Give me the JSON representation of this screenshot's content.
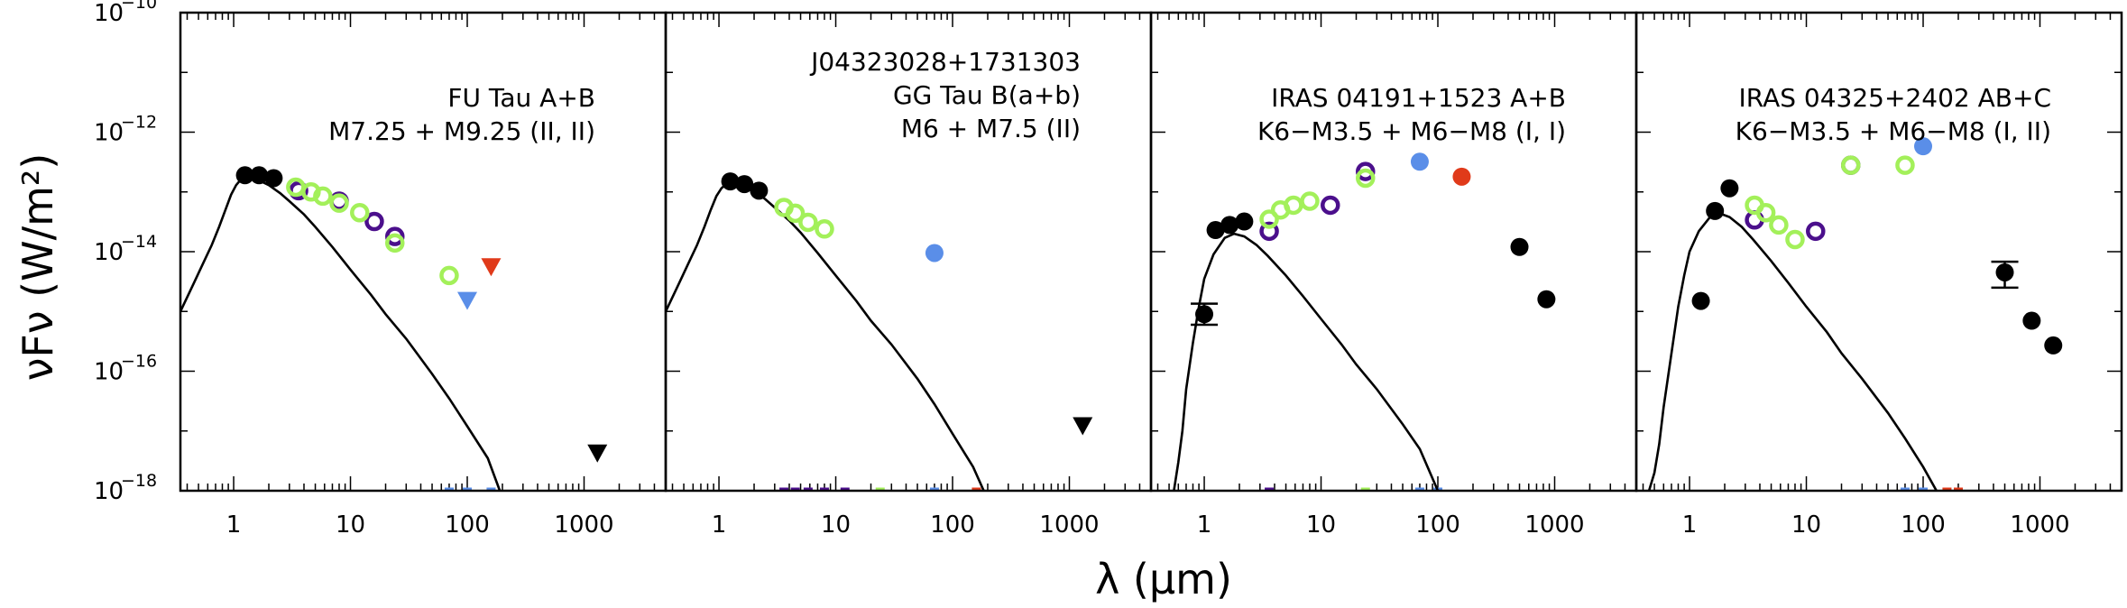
{
  "chart_data": {
    "type": "scatter",
    "xlabel": "λ (μm)",
    "ylabel": "νFν (W/m²)",
    "x_scale": "log",
    "y_scale": "log",
    "xlim": [
      0.35,
      5000
    ],
    "ylim": [
      1e-18,
      1e-10
    ],
    "x_ticks": [
      1,
      10,
      100,
      1000
    ],
    "x_tick_labels": [
      "1",
      "10",
      "100",
      "1000"
    ],
    "y_ticks": [
      1e-18,
      1e-16,
      1e-14,
      1e-12,
      1e-10
    ],
    "y_tick_labels": [
      {
        "base": "10",
        "exp": "−18"
      },
      {
        "base": "10",
        "exp": "−16"
      },
      {
        "base": "10",
        "exp": "−14"
      },
      {
        "base": "10",
        "exp": "−12"
      },
      {
        "base": "10",
        "exp": "−10"
      }
    ],
    "colors": {
      "black": "#000000",
      "purple": "#4b0f8c",
      "green": "#a3f05a",
      "blue": "#5a8ee8",
      "red": "#e03a1a"
    },
    "panels": [
      {
        "title_lines": [
          "FU Tau A+B",
          "M7.25 + M9.25 (II, II)"
        ],
        "series": [
          {
            "name": "black-filled",
            "marker": "filled-circle",
            "color": "black",
            "points": [
              [
                1.25,
                1.9e-13
              ],
              [
                1.65,
                1.9e-13
              ],
              [
                2.2,
                1.7e-13
              ]
            ]
          },
          {
            "name": "purple-open",
            "marker": "open-circle",
            "color": "purple",
            "points": [
              [
                3.6,
                1.05e-13
              ],
              [
                8.0,
                7e-14
              ],
              [
                16,
                3.2e-14
              ],
              [
                24,
                1.8e-14
              ]
            ]
          },
          {
            "name": "green-open",
            "marker": "open-circle",
            "color": "green",
            "points": [
              [
                3.4,
                1.2e-13
              ],
              [
                4.6,
                1e-13
              ],
              [
                5.8,
                8.5e-14
              ],
              [
                8.0,
                6.5e-14
              ],
              [
                12,
                4.5e-14
              ],
              [
                24,
                1.4e-14
              ],
              [
                70,
                4e-15
              ]
            ]
          },
          {
            "name": "blue-limit",
            "marker": "triangle-down",
            "color": "blue",
            "points": [
              [
                100,
                1.5e-15
              ]
            ]
          },
          {
            "name": "red-limit",
            "marker": "triangle-down",
            "color": "red",
            "points": [
              [
                160,
                5.5e-15
              ]
            ]
          },
          {
            "name": "black-limit",
            "marker": "triangle-down",
            "color": "black",
            "points": [
              [
                1300,
                4.2e-18
              ]
            ]
          }
        ],
        "model_curve": [
          [
            0.35,
            1e-15
          ],
          [
            0.45,
            2.8e-15
          ],
          [
            0.55,
            6.5e-15
          ],
          [
            0.65,
            1.3e-14
          ],
          [
            0.75,
            2.6e-14
          ],
          [
            0.85,
            5e-14
          ],
          [
            0.95,
            9e-14
          ],
          [
            1.05,
            1.3e-13
          ],
          [
            1.15,
            1.6e-13
          ],
          [
            1.25,
            1.8e-13
          ],
          [
            1.4,
            1.75e-13
          ],
          [
            1.6,
            1.6e-13
          ],
          [
            2.0,
            1.3e-13
          ],
          [
            2.5,
            9.5e-14
          ],
          [
            3.0,
            7e-14
          ],
          [
            4.0,
            4.2e-14
          ],
          [
            5.0,
            2.6e-14
          ],
          [
            7.0,
            1.2e-14
          ],
          [
            10,
            5e-15
          ],
          [
            15,
            1.9e-15
          ],
          [
            20,
            9e-16
          ],
          [
            30,
            3.5e-16
          ],
          [
            50,
            9e-17
          ],
          [
            70,
            3.5e-17
          ],
          [
            100,
            1.2e-17
          ],
          [
            150,
            3.5e-18
          ],
          [
            190,
            1e-18
          ]
        ],
        "axis_ticks": [
          {
            "x": 70,
            "color": "blue"
          },
          {
            "x": 100,
            "color": "blue"
          },
          {
            "x": 160,
            "color": "blue"
          }
        ]
      },
      {
        "title_lines": [
          "J04323028+1731303",
          "GG Tau B(a+b)",
          "M6 + M7.5 (II)"
        ],
        "series": [
          {
            "name": "black-filled",
            "marker": "filled-circle",
            "color": "black",
            "points": [
              [
                1.25,
                1.5e-13
              ],
              [
                1.65,
                1.35e-13
              ],
              [
                2.2,
                1.05e-13
              ]
            ]
          },
          {
            "name": "green-open",
            "marker": "open-circle",
            "color": "green",
            "points": [
              [
                3.6,
                5.5e-14
              ],
              [
                4.5,
                4.4e-14
              ],
              [
                5.8,
                3.1e-14
              ],
              [
                8.0,
                2.4e-14
              ]
            ]
          },
          {
            "name": "blue-filled",
            "marker": "filled-circle",
            "color": "blue",
            "points": [
              [
                70,
                9.5e-15
              ]
            ]
          },
          {
            "name": "black-limit",
            "marker": "triangle-down",
            "color": "black",
            "points": [
              [
                1300,
                1.2e-17
              ]
            ]
          }
        ],
        "model_curve": [
          [
            0.35,
            1e-15
          ],
          [
            0.45,
            2.8e-15
          ],
          [
            0.55,
            6.5e-15
          ],
          [
            0.65,
            1.3e-14
          ],
          [
            0.75,
            2.6e-14
          ],
          [
            0.85,
            5e-14
          ],
          [
            0.95,
            8.5e-14
          ],
          [
            1.05,
            1.15e-13
          ],
          [
            1.15,
            1.35e-13
          ],
          [
            1.25,
            1.45e-13
          ],
          [
            1.4,
            1.4e-13
          ],
          [
            1.6,
            1.3e-13
          ],
          [
            2.0,
            1.05e-13
          ],
          [
            2.5,
            7.5e-14
          ],
          [
            3.0,
            5.5e-14
          ],
          [
            4.0,
            3.3e-14
          ],
          [
            5.0,
            2.1e-14
          ],
          [
            7.0,
            9.5e-15
          ],
          [
            10,
            4e-15
          ],
          [
            15,
            1.5e-15
          ],
          [
            20,
            7e-16
          ],
          [
            30,
            2.8e-16
          ],
          [
            50,
            7.5e-17
          ],
          [
            70,
            2.8e-17
          ],
          [
            100,
            9e-18
          ],
          [
            150,
            2.5e-18
          ],
          [
            185,
            1e-18
          ]
        ],
        "axis_ticks": [
          {
            "x": 3.6,
            "color": "purple"
          },
          {
            "x": 4.5,
            "color": "purple"
          },
          {
            "x": 5.8,
            "color": "purple"
          },
          {
            "x": 8,
            "color": "purple"
          },
          {
            "x": 12,
            "color": "purple"
          },
          {
            "x": 24,
            "color": "green"
          },
          {
            "x": 70,
            "color": "blue"
          },
          {
            "x": 160,
            "color": "red"
          }
        ]
      },
      {
        "title_lines": [
          "IRAS 04191+1523 A+B",
          "K6−M3.5 + M6−M8 (I, I)"
        ],
        "series": [
          {
            "name": "black-filled",
            "marker": "filled-circle",
            "color": "black",
            "points": [
              [
                1.25,
                2.3e-14
              ],
              [
                1.65,
                2.8e-14
              ],
              [
                2.2,
                3.2e-14
              ],
              [
                500,
                1.2e-14
              ],
              [
                850,
                1.6e-15
              ]
            ]
          },
          {
            "name": "black-errorbar",
            "marker": "errorbar-circle",
            "color": "black",
            "points": [
              [
                1.0,
                9e-16,
                6e-16,
                1.35e-15
              ]
            ]
          },
          {
            "name": "purple-open",
            "marker": "open-circle",
            "color": "purple",
            "points": [
              [
                3.6,
                2.2e-14
              ],
              [
                12,
                6e-14
              ],
              [
                24,
                2.2e-13
              ]
            ]
          },
          {
            "name": "green-open",
            "marker": "open-circle",
            "color": "green",
            "points": [
              [
                3.6,
                3.5e-14
              ],
              [
                4.5,
                5e-14
              ],
              [
                5.8,
                6e-14
              ],
              [
                8.0,
                7e-14
              ],
              [
                24,
                1.7e-13
              ]
            ]
          },
          {
            "name": "blue-filled",
            "marker": "filled-circle",
            "color": "blue",
            "points": [
              [
                70,
                3.2e-13
              ]
            ]
          },
          {
            "name": "red-filled",
            "marker": "filled-circle",
            "color": "red",
            "points": [
              [
                160,
                1.8e-13
              ]
            ]
          }
        ],
        "model_curve": [
          [
            0.55,
            1e-18
          ],
          [
            0.6,
            3e-18
          ],
          [
            0.65,
            1e-17
          ],
          [
            0.7,
            5e-17
          ],
          [
            0.8,
            3e-16
          ],
          [
            0.9,
            1.2e-15
          ],
          [
            1.0,
            3.5e-15
          ],
          [
            1.2,
            9e-15
          ],
          [
            1.5,
            1.7e-14
          ],
          [
            1.8,
            2e-14
          ],
          [
            2.2,
            1.8e-14
          ],
          [
            2.8,
            1.3e-14
          ],
          [
            3.5,
            8.5e-15
          ],
          [
            5,
            4e-15
          ],
          [
            7,
            1.8e-15
          ],
          [
            10,
            7.5e-16
          ],
          [
            15,
            2.8e-16
          ],
          [
            20,
            1.3e-16
          ],
          [
            30,
            5e-17
          ],
          [
            50,
            1.3e-17
          ],
          [
            70,
            5e-18
          ],
          [
            100,
            1e-18
          ]
        ],
        "axis_ticks": [
          {
            "x": 3.6,
            "color": "purple"
          },
          {
            "x": 24,
            "color": "green"
          },
          {
            "x": 70,
            "color": "blue"
          },
          {
            "x": 100,
            "color": "blue"
          }
        ]
      },
      {
        "title_lines": [
          "IRAS 04325+2402 AB+C",
          "K6−M3.5 + M6−M8 (I, II)"
        ],
        "series": [
          {
            "name": "black-filled",
            "marker": "filled-circle",
            "color": "black",
            "points": [
              [
                1.25,
                1.5e-15
              ],
              [
                1.65,
                4.8e-14
              ],
              [
                2.2,
                1.15e-13
              ],
              [
                850,
                7e-16
              ],
              [
                1300,
                2.7e-16
              ]
            ]
          },
          {
            "name": "black-errorbar",
            "marker": "errorbar-circle",
            "color": "black",
            "points": [
              [
                500,
                4.5e-15,
                2.5e-15,
                6.8e-15
              ]
            ]
          },
          {
            "name": "purple-open",
            "marker": "open-circle",
            "color": "purple",
            "points": [
              [
                3.6,
                3.4e-14
              ],
              [
                12,
                2.2e-14
              ],
              [
                24,
                2.8e-13
              ]
            ]
          },
          {
            "name": "green-open",
            "marker": "open-circle",
            "color": "green",
            "points": [
              [
                3.6,
                6e-14
              ],
              [
                4.5,
                4.5e-14
              ],
              [
                5.8,
                2.8e-14
              ],
              [
                8.0,
                1.6e-14
              ],
              [
                24,
                2.8e-13
              ],
              [
                70,
                2.8e-13
              ]
            ]
          },
          {
            "name": "blue-filled",
            "marker": "filled-circle",
            "color": "blue",
            "points": [
              [
                100,
                5.8e-13
              ]
            ]
          }
        ],
        "model_curve": [
          [
            0.45,
            1e-18
          ],
          [
            0.5,
            2e-18
          ],
          [
            0.55,
            6e-18
          ],
          [
            0.6,
            2.5e-17
          ],
          [
            0.7,
            2e-16
          ],
          [
            0.8,
            1.2e-15
          ],
          [
            0.9,
            4e-15
          ],
          [
            1.0,
            1e-14
          ],
          [
            1.2,
            2.2e-14
          ],
          [
            1.5,
            3.8e-14
          ],
          [
            1.8,
            4.4e-14
          ],
          [
            2.2,
            3.8e-14
          ],
          [
            2.8,
            2.6e-14
          ],
          [
            3.5,
            1.6e-14
          ],
          [
            5,
            7e-15
          ],
          [
            7,
            3e-15
          ],
          [
            10,
            1.2e-15
          ],
          [
            15,
            4.5e-16
          ],
          [
            20,
            2e-16
          ],
          [
            30,
            7.5e-17
          ],
          [
            50,
            2e-17
          ],
          [
            70,
            7.5e-18
          ],
          [
            100,
            2.5e-18
          ],
          [
            130,
            1e-18
          ]
        ],
        "axis_ticks": [
          {
            "x": 70,
            "color": "blue"
          },
          {
            "x": 100,
            "color": "blue"
          },
          {
            "x": 160,
            "color": "red"
          },
          {
            "x": 200,
            "color": "red"
          }
        ]
      }
    ]
  }
}
